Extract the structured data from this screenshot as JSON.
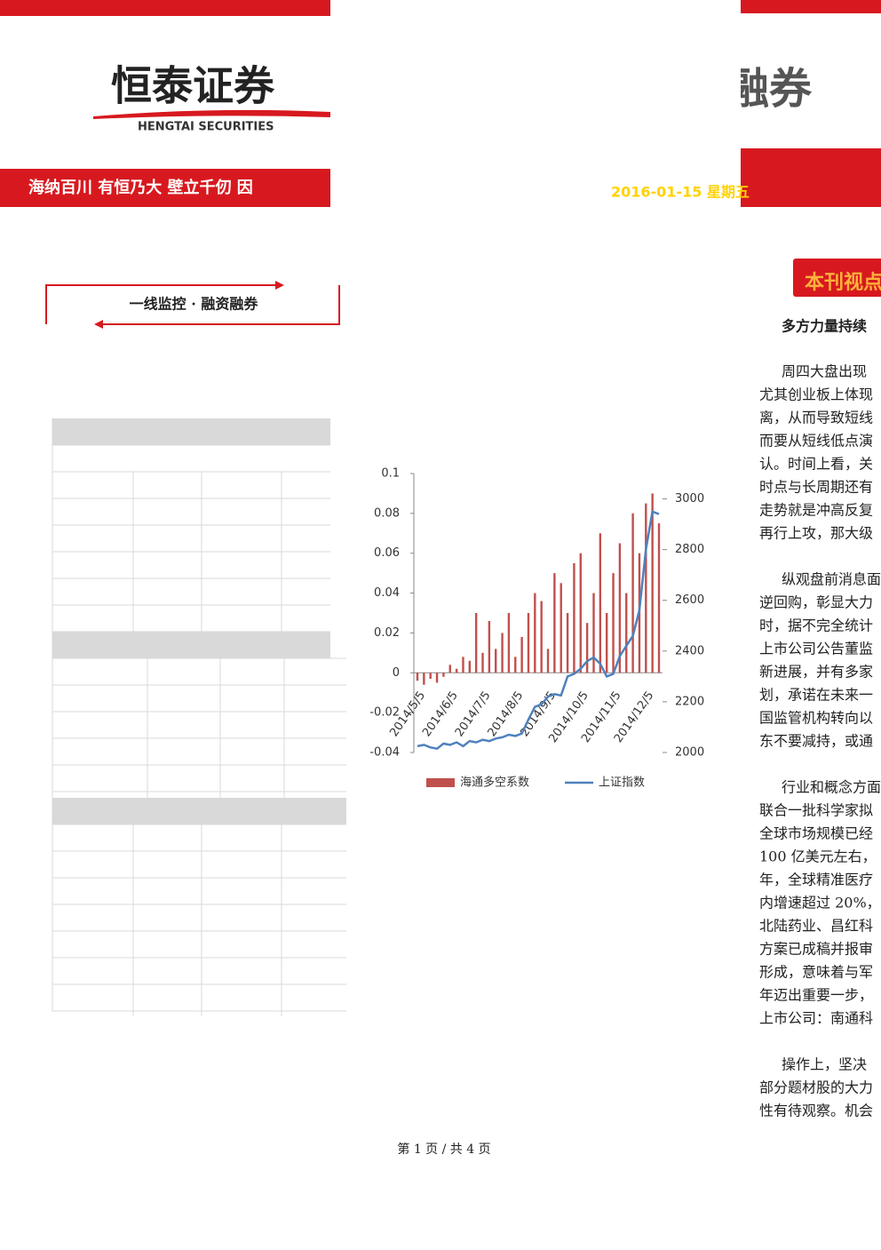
{
  "header": {
    "logo": "恒泰证券",
    "logo_en": "HENGTAI SECURITIES",
    "title_fragment": "融券",
    "slogan": "海纳百川 有恒乃大  壁立千仞 因",
    "date": "2016-01-15 星期五"
  },
  "section_label": "一线监控 · 融资融券",
  "viewpoint": {
    "title": "本刊视点",
    "heading": "多方力量持续",
    "paragraphs": [
      [
        "周四大盘出现",
        "尤其创业板上体现",
        "离，从而导致短线",
        "而要从短线低点演",
        "认。时间上看，关",
        "时点与长周期还有",
        "走势就是冲高反复",
        "再行上攻，那大级"
      ],
      [
        "纵观盘前消息面",
        "逆回购，彰显大力",
        "时，据不完全统计",
        "上市公司公告董监",
        "新进展，并有多家",
        "划，承诺在未来一",
        "国监管机构转向以",
        "东不要减持，或通"
      ],
      [
        "行业和概念方面",
        "联合一批科学家拟",
        "全球市场规模已经",
        "100 亿美元左右，",
        "年，全球精准医疗",
        "内增速超过 20%，",
        "北陆药业、昌红科",
        "方案已成稿并报审",
        "形成，意味着与军",
        "年迈出重要一步，",
        "上市公司：南通科"
      ],
      [
        "操作上，坚决",
        "部分题材股的大力",
        "性有待观察。机会"
      ]
    ]
  },
  "chart_data": {
    "type": "bar",
    "categories": [
      "2014/5/5",
      null,
      null,
      null,
      null,
      "2014/6/5",
      null,
      null,
      null,
      null,
      "2014/7/5",
      null,
      null,
      null,
      null,
      "2014/8/5",
      null,
      null,
      null,
      null,
      "2014/9/5",
      null,
      null,
      null,
      null,
      "2014/10/5",
      null,
      null,
      null,
      null,
      "2014/11/5",
      null,
      null,
      null,
      null,
      "2014/12/5",
      null,
      null
    ],
    "series": [
      {
        "name": "海通多空系数",
        "type": "bar",
        "color": "#c0504d",
        "values": [
          -0.004,
          -0.006,
          -0.003,
          -0.005,
          -0.002,
          0.004,
          0.002,
          0.008,
          0.006,
          0.03,
          0.01,
          0.026,
          0.012,
          0.02,
          0.03,
          0.008,
          0.018,
          0.03,
          0.04,
          0.036,
          0.012,
          0.05,
          0.045,
          0.03,
          0.055,
          0.06,
          0.025,
          0.04,
          0.07,
          0.03,
          0.05,
          0.065,
          0.04,
          0.08,
          0.06,
          0.085,
          0.09,
          0.075
        ]
      },
      {
        "name": "上证指数",
        "type": "line",
        "axis": "y2",
        "color": "#4f81bd",
        "values": [
          2025,
          2030,
          2020,
          2015,
          2035,
          2030,
          2040,
          2025,
          2045,
          2040,
          2050,
          2045,
          2055,
          2060,
          2070,
          2065,
          2075,
          2130,
          2180,
          2190,
          2220,
          2230,
          2225,
          2300,
          2310,
          2330,
          2360,
          2375,
          2350,
          2300,
          2310,
          2380,
          2420,
          2460,
          2560,
          2800,
          2950,
          2940
        ]
      }
    ],
    "ylim": [
      -0.04,
      0.1
    ],
    "yticks": [
      -0.04,
      -0.02,
      0,
      0.02,
      0.04,
      0.06,
      0.08,
      0.1
    ],
    "y2lim": [
      2000,
      3100
    ],
    "y2ticks": [
      2000,
      2200,
      2400,
      2600,
      2800,
      3000
    ],
    "legend": "bottom"
  },
  "footer": "第 1 页 / 共 4 页"
}
